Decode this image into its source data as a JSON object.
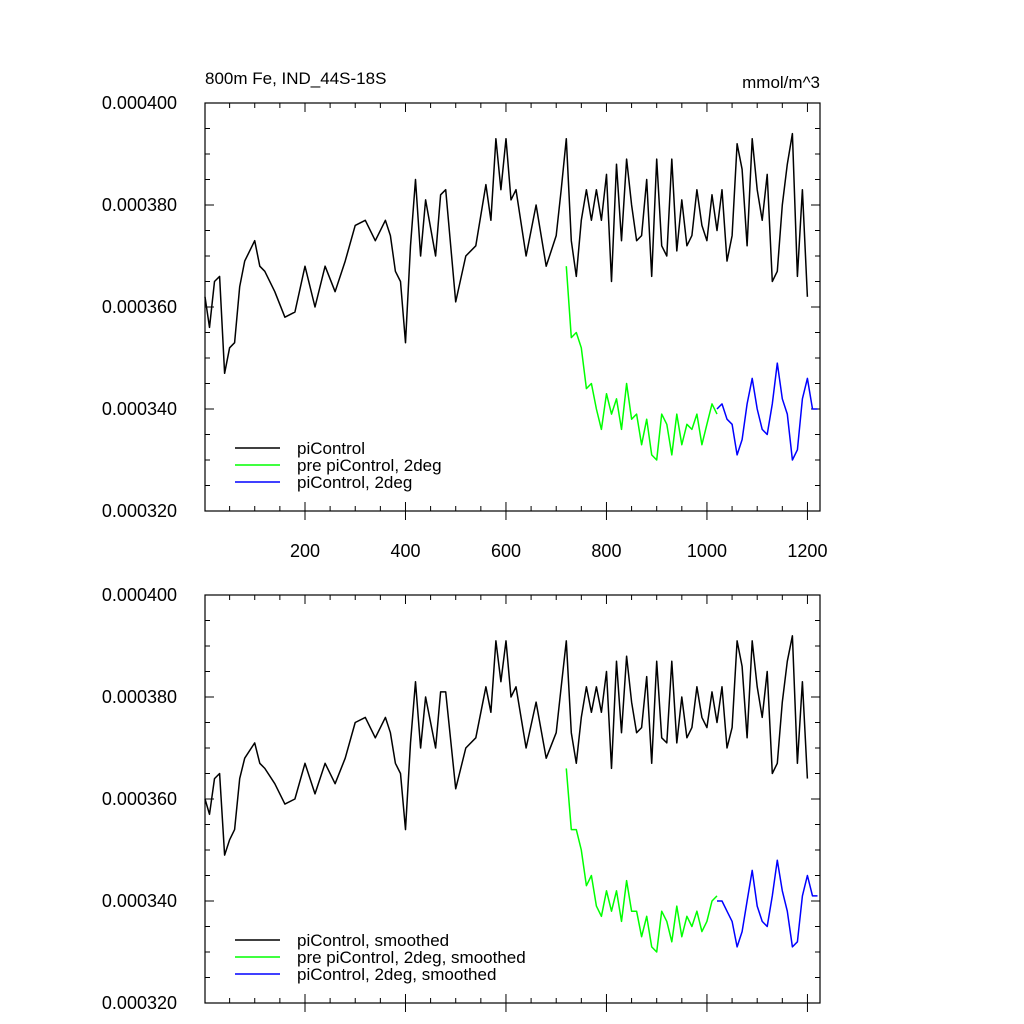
{
  "chart_data": [
    {
      "type": "line",
      "title": "800m Fe, IND_44S-18S",
      "units": "mmol/m^3",
      "xlim": [
        1,
        1225
      ],
      "ylim": [
        0.00032,
        0.0004
      ],
      "xticks": [
        200,
        400,
        600,
        800,
        1000,
        1200
      ],
      "yticks": [
        0.00032,
        0.00034,
        0.00036,
        0.00038,
        0.0004
      ],
      "ytick_labels": [
        "0.000320",
        "0.000340",
        "0.000360",
        "0.000380",
        "0.000400"
      ],
      "xtick_labels": [
        "200",
        "400",
        "600",
        "800",
        "1000",
        "1200"
      ],
      "grid": false,
      "legend_position": "bottom-left",
      "series": [
        {
          "name": "piControl",
          "color": "#000000",
          "x": [
            1,
            10,
            20,
            30,
            40,
            50,
            60,
            70,
            80,
            100,
            110,
            120,
            140,
            160,
            180,
            200,
            220,
            240,
            260,
            280,
            300,
            320,
            340,
            360,
            370,
            380,
            390,
            400,
            410,
            420,
            430,
            440,
            460,
            470,
            480,
            500,
            520,
            540,
            560,
            570,
            580,
            590,
            600,
            610,
            620,
            640,
            660,
            680,
            700,
            710,
            720,
            730,
            740,
            750,
            760,
            770,
            780,
            790,
            800,
            810,
            820,
            830,
            840,
            850,
            860,
            870,
            880,
            890,
            900,
            910,
            920,
            930,
            940,
            950,
            960,
            970,
            980,
            990,
            1000,
            1010,
            1020,
            1030,
            1040,
            1050,
            1060,
            1070,
            1080,
            1090,
            1100,
            1110,
            1120,
            1130,
            1140,
            1150,
            1160,
            1170,
            1180,
            1190,
            1200
          ],
          "y": [
            0.000362,
            0.000356,
            0.000365,
            0.000366,
            0.000347,
            0.000352,
            0.000353,
            0.000364,
            0.000369,
            0.000373,
            0.000368,
            0.000367,
            0.000363,
            0.000358,
            0.000359,
            0.000368,
            0.00036,
            0.000368,
            0.000363,
            0.000369,
            0.000376,
            0.000377,
            0.000373,
            0.000377,
            0.000374,
            0.000367,
            0.000365,
            0.000353,
            0.000372,
            0.000385,
            0.00037,
            0.000381,
            0.00037,
            0.000382,
            0.000383,
            0.000361,
            0.00037,
            0.000372,
            0.000384,
            0.000377,
            0.000393,
            0.000383,
            0.000393,
            0.000381,
            0.000383,
            0.00037,
            0.00038,
            0.000368,
            0.000374,
            0.000383,
            0.000393,
            0.000373,
            0.000366,
            0.000377,
            0.000383,
            0.000377,
            0.000383,
            0.000377,
            0.000386,
            0.000365,
            0.000388,
            0.000373,
            0.000389,
            0.00038,
            0.000373,
            0.000374,
            0.000385,
            0.000366,
            0.000389,
            0.000372,
            0.00037,
            0.000389,
            0.000371,
            0.000381,
            0.000372,
            0.000374,
            0.000383,
            0.000376,
            0.000373,
            0.000382,
            0.000375,
            0.000383,
            0.000369,
            0.000374,
            0.000392,
            0.000387,
            0.000372,
            0.000393,
            0.000383,
            0.000377,
            0.000386,
            0.000365,
            0.000367,
            0.00038,
            0.000388,
            0.000394,
            0.000366,
            0.000383,
            0.000362
          ]
        },
        {
          "name": "pre piControl, 2deg",
          "color": "#00ff00",
          "x": [
            720,
            730,
            740,
            750,
            760,
            770,
            780,
            790,
            800,
            810,
            820,
            830,
            840,
            850,
            860,
            870,
            880,
            890,
            900,
            910,
            920,
            930,
            940,
            950,
            960,
            970,
            980,
            990,
            1000,
            1010,
            1020
          ],
          "y": [
            0.000368,
            0.000354,
            0.000355,
            0.000352,
            0.000344,
            0.000345,
            0.00034,
            0.000336,
            0.000343,
            0.000339,
            0.000342,
            0.000336,
            0.000345,
            0.000338,
            0.000339,
            0.000333,
            0.000338,
            0.000331,
            0.00033,
            0.000339,
            0.000337,
            0.000331,
            0.000339,
            0.000333,
            0.000337,
            0.000336,
            0.000339,
            0.000333,
            0.000337,
            0.000341,
            0.000339
          ]
        },
        {
          "name": "piControl, 2deg",
          "color": "#0000ff",
          "x": [
            1020,
            1030,
            1040,
            1050,
            1060,
            1070,
            1080,
            1090,
            1100,
            1110,
            1120,
            1130,
            1140,
            1150,
            1160,
            1170,
            1180,
            1190,
            1200,
            1210,
            1220
          ],
          "y": [
            0.00034,
            0.000341,
            0.000338,
            0.000337,
            0.000331,
            0.000334,
            0.000341,
            0.000346,
            0.00034,
            0.000336,
            0.000335,
            0.000341,
            0.000349,
            0.000342,
            0.000339,
            0.00033,
            0.000332,
            0.000342,
            0.000346,
            0.00034,
            0.00034
          ]
        }
      ]
    },
    {
      "type": "line",
      "xlim": [
        1,
        1225
      ],
      "ylim": [
        0.00032,
        0.0004
      ],
      "yticks": [
        0.00032,
        0.00034,
        0.00036,
        0.00038,
        0.0004
      ],
      "ytick_labels": [
        "0.000320",
        "0.000340",
        "0.000360",
        "0.000380",
        "0.000400"
      ],
      "grid": false,
      "legend_position": "bottom-left",
      "series": [
        {
          "name": "piControl, smoothed",
          "color": "#000000",
          "x": [
            1,
            10,
            20,
            30,
            40,
            50,
            60,
            70,
            80,
            100,
            110,
            120,
            140,
            160,
            180,
            200,
            220,
            240,
            260,
            280,
            300,
            320,
            340,
            360,
            370,
            380,
            390,
            400,
            410,
            420,
            430,
            440,
            460,
            470,
            480,
            500,
            520,
            540,
            560,
            570,
            580,
            590,
            600,
            610,
            620,
            640,
            660,
            680,
            700,
            710,
            720,
            730,
            740,
            750,
            760,
            770,
            780,
            790,
            800,
            810,
            820,
            830,
            840,
            850,
            860,
            870,
            880,
            890,
            900,
            910,
            920,
            930,
            940,
            950,
            960,
            970,
            980,
            990,
            1000,
            1010,
            1020,
            1030,
            1040,
            1050,
            1060,
            1070,
            1080,
            1090,
            1100,
            1110,
            1120,
            1130,
            1140,
            1150,
            1160,
            1170,
            1180,
            1190,
            1200
          ],
          "y": [
            0.00036,
            0.000357,
            0.000364,
            0.000365,
            0.000349,
            0.000352,
            0.000354,
            0.000364,
            0.000368,
            0.000371,
            0.000367,
            0.000366,
            0.000363,
            0.000359,
            0.00036,
            0.000367,
            0.000361,
            0.000367,
            0.000363,
            0.000368,
            0.000375,
            0.000376,
            0.000372,
            0.000376,
            0.000373,
            0.000367,
            0.000365,
            0.000354,
            0.000371,
            0.000383,
            0.00037,
            0.00038,
            0.00037,
            0.000381,
            0.000381,
            0.000362,
            0.00037,
            0.000372,
            0.000382,
            0.000377,
            0.000391,
            0.000383,
            0.000391,
            0.00038,
            0.000382,
            0.00037,
            0.000379,
            0.000368,
            0.000373,
            0.000382,
            0.000391,
            0.000373,
            0.000367,
            0.000376,
            0.000382,
            0.000377,
            0.000382,
            0.000377,
            0.000385,
            0.000366,
            0.000387,
            0.000373,
            0.000388,
            0.000379,
            0.000373,
            0.000374,
            0.000384,
            0.000367,
            0.000387,
            0.000372,
            0.000371,
            0.000387,
            0.000371,
            0.00038,
            0.000372,
            0.000374,
            0.000382,
            0.000376,
            0.000374,
            0.000381,
            0.000375,
            0.000382,
            0.00037,
            0.000374,
            0.000391,
            0.000386,
            0.000372,
            0.000391,
            0.000382,
            0.000376,
            0.000385,
            0.000365,
            0.000367,
            0.000379,
            0.000387,
            0.000392,
            0.000367,
            0.000383,
            0.000364
          ]
        },
        {
          "name": "pre piControl, 2deg, smoothed",
          "color": "#00ff00",
          "x": [
            720,
            730,
            740,
            750,
            760,
            770,
            780,
            790,
            800,
            810,
            820,
            830,
            840,
            850,
            860,
            870,
            880,
            890,
            900,
            910,
            920,
            930,
            940,
            950,
            960,
            970,
            980,
            990,
            1000,
            1010,
            1020
          ],
          "y": [
            0.000366,
            0.000354,
            0.000354,
            0.00035,
            0.000343,
            0.000345,
            0.000339,
            0.000337,
            0.000342,
            0.000338,
            0.000342,
            0.000336,
            0.000344,
            0.000338,
            0.000338,
            0.000333,
            0.000337,
            0.000331,
            0.00033,
            0.000338,
            0.000336,
            0.000332,
            0.000339,
            0.000333,
            0.000337,
            0.000335,
            0.000338,
            0.000334,
            0.000336,
            0.00034,
            0.000341
          ]
        },
        {
          "name": "piControl, 2deg, smoothed",
          "color": "#0000ff",
          "x": [
            1020,
            1030,
            1040,
            1050,
            1060,
            1070,
            1080,
            1090,
            1100,
            1110,
            1120,
            1130,
            1140,
            1150,
            1160,
            1170,
            1180,
            1190,
            1200,
            1210,
            1220
          ],
          "y": [
            0.00034,
            0.00034,
            0.000338,
            0.000336,
            0.000331,
            0.000334,
            0.00034,
            0.000346,
            0.000339,
            0.000336,
            0.000335,
            0.000341,
            0.000348,
            0.000342,
            0.000338,
            0.000331,
            0.000332,
            0.000341,
            0.000345,
            0.000341,
            0.000341
          ]
        }
      ]
    }
  ]
}
